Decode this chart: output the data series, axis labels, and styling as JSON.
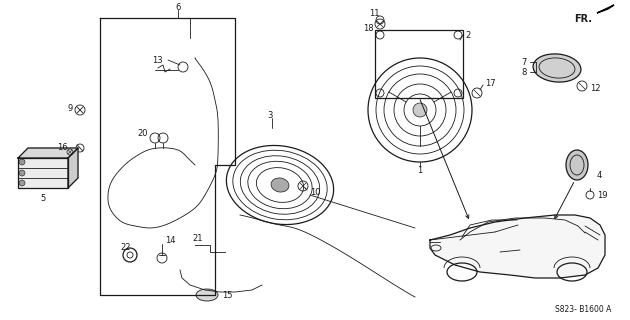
{
  "bg_color": "#ffffff",
  "fig_width": 6.3,
  "fig_height": 3.2,
  "diagram_code": "S823- B1600 A",
  "fr_label": "FR.",
  "line_color": "#1a1a1a",
  "gray_color": "#888888",
  "dark_gray": "#555555"
}
